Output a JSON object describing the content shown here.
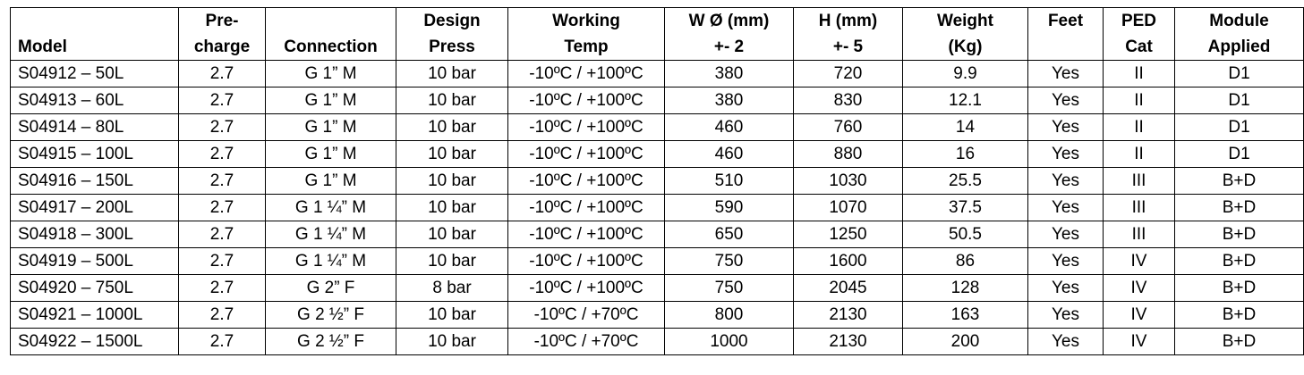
{
  "headers": [
    {
      "line1": "",
      "line2": "Model"
    },
    {
      "line1": "Pre-",
      "line2": "charge"
    },
    {
      "line1": "",
      "line2": "Connection"
    },
    {
      "line1": "Design",
      "line2": "Press"
    },
    {
      "line1": "Working",
      "line2": "Temp"
    },
    {
      "line1": "W Ø (mm)",
      "line2": "+- 2"
    },
    {
      "line1": "H (mm)",
      "line2": "+- 5"
    },
    {
      "line1": "Weight",
      "line2": "(Kg)"
    },
    {
      "line1": "Feet",
      "line2": ""
    },
    {
      "line1": "PED",
      "line2": "Cat"
    },
    {
      "line1": "Module",
      "line2": "Applied"
    }
  ],
  "rows": [
    [
      "S04912 – 50L",
      "2.7",
      "G 1” M",
      "10 bar",
      "-10ºC / +100ºC",
      "380",
      "720",
      "9.9",
      "Yes",
      "II",
      "D1"
    ],
    [
      "S04913 – 60L",
      "2.7",
      "G 1” M",
      "10 bar",
      "-10ºC / +100ºC",
      "380",
      "830",
      "12.1",
      "Yes",
      "II",
      "D1"
    ],
    [
      "S04914 – 80L",
      "2.7",
      "G 1” M",
      "10 bar",
      "-10ºC / +100ºC",
      "460",
      "760",
      "14",
      "Yes",
      "II",
      "D1"
    ],
    [
      "S04915 – 100L",
      "2.7",
      "G 1” M",
      "10 bar",
      "-10ºC / +100ºC",
      "460",
      "880",
      "16",
      "Yes",
      "II",
      "D1"
    ],
    [
      "S04916 – 150L",
      "2.7",
      "G 1” M",
      "10 bar",
      "-10ºC / +100ºC",
      "510",
      "1030",
      "25.5",
      "Yes",
      "III",
      "B+D"
    ],
    [
      "S04917 – 200L",
      "2.7",
      "G 1 ¼” M",
      "10 bar",
      "-10ºC / +100ºC",
      "590",
      "1070",
      "37.5",
      "Yes",
      "III",
      "B+D"
    ],
    [
      "S04918 – 300L",
      "2.7",
      "G 1 ¼” M",
      "10 bar",
      "-10ºC / +100ºC",
      "650",
      "1250",
      "50.5",
      "Yes",
      "III",
      "B+D"
    ],
    [
      "S04919 – 500L",
      "2.7",
      "G 1 ¼” M",
      "10 bar",
      "-10ºC / +100ºC",
      "750",
      "1600",
      "86",
      "Yes",
      "IV",
      "B+D"
    ],
    [
      "S04920 – 750L",
      "2.7",
      "G 2” F",
      "8 bar",
      "-10ºC / +100ºC",
      "750",
      "2045",
      "128",
      "Yes",
      "IV",
      "B+D"
    ],
    [
      "S04921 – 1000L",
      "2.7",
      "G 2 ½” F",
      "10 bar",
      "-10ºC / +70ºC",
      "800",
      "2130",
      "163",
      "Yes",
      "IV",
      "B+D"
    ],
    [
      "S04922 – 1500L",
      "2.7",
      "G 2 ½” F",
      "10 bar",
      "-10ºC / +70ºC",
      "1000",
      "2130",
      "200",
      "Yes",
      "IV",
      "B+D"
    ]
  ]
}
